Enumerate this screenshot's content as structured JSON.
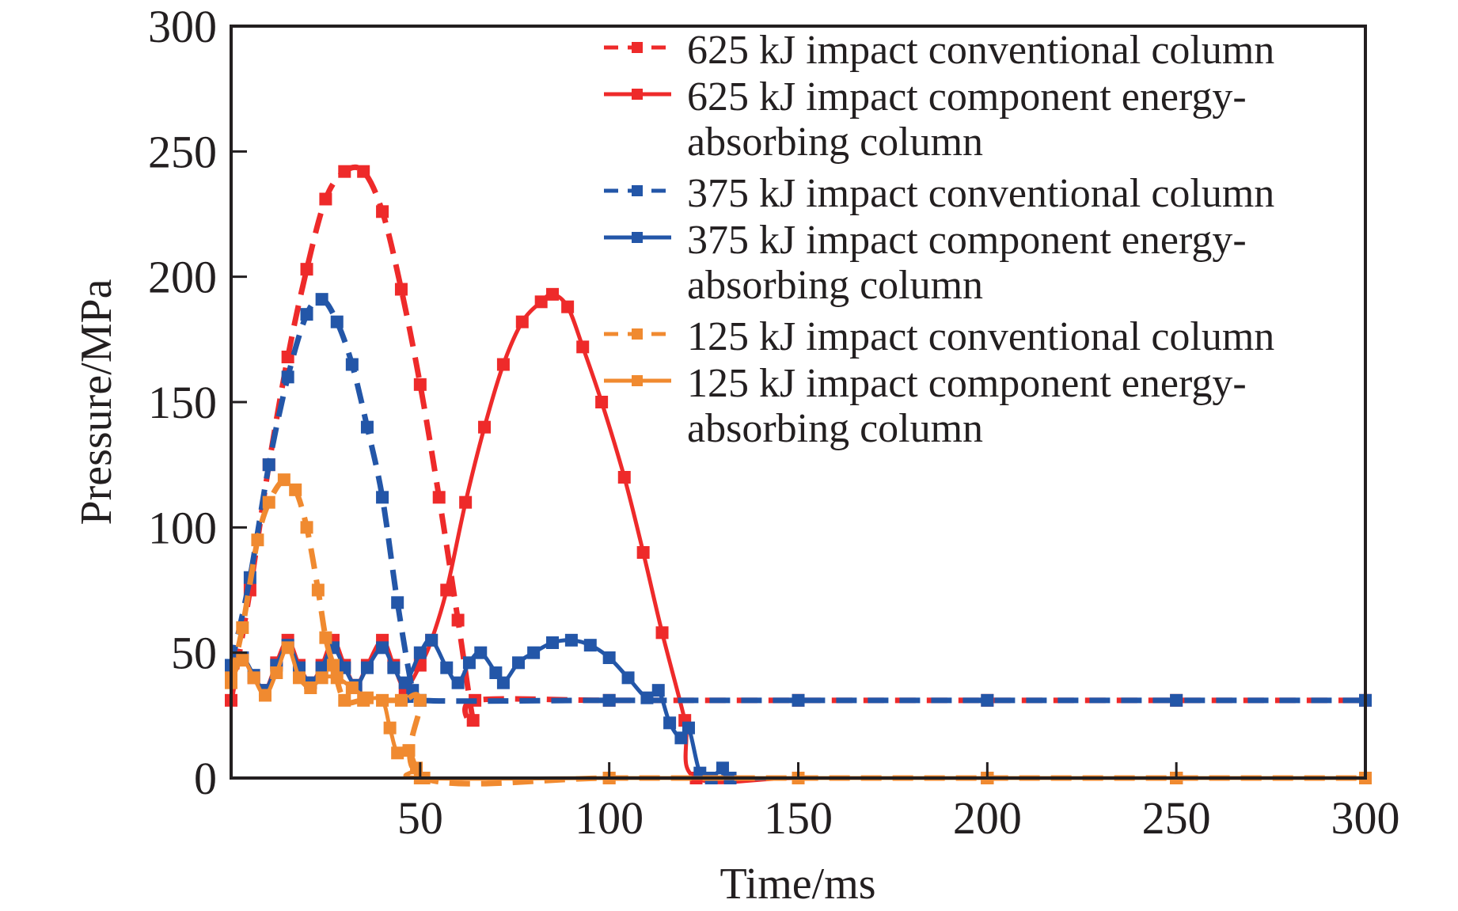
{
  "chart_data": {
    "type": "line",
    "title": "",
    "xlabel": "Time/ms",
    "ylabel": "Pressure/MPa",
    "xlim": [
      0,
      300
    ],
    "ylim": [
      0,
      300
    ],
    "xticks": [
      50,
      100,
      150,
      200,
      250,
      300
    ],
    "yticks": [
      0,
      50,
      100,
      150,
      200,
      250,
      300
    ],
    "grid": false,
    "legend_position": "top-right",
    "series": [
      {
        "name": "625 kJ impact conventional column",
        "legend_lines": [
          "625 kJ impact conventional column"
        ],
        "color": "#ee2a2a",
        "style": "dashed",
        "x": [
          0,
          5,
          10,
          15,
          20,
          25,
          30,
          35,
          40,
          45,
          50,
          55,
          60,
          64,
          64.5,
          100,
          150,
          200,
          250,
          300
        ],
        "y": [
          31,
          75,
          125,
          168,
          203,
          231,
          242,
          242,
          226,
          195,
          157,
          112,
          63,
          23,
          31,
          31,
          31,
          31,
          31,
          31
        ]
      },
      {
        "name": "625 kJ impact component energy-absorbing column",
        "legend_lines": [
          "625 kJ impact component energy-",
          "absorbing column"
        ],
        "color": "#ee2a2a",
        "style": "solid",
        "x": [
          0,
          3,
          6,
          9,
          12,
          15,
          18,
          21,
          24,
          27,
          30,
          33,
          36,
          40,
          43,
          46,
          50,
          53,
          57,
          62,
          67,
          72,
          77,
          82,
          85,
          89,
          93,
          98,
          104,
          109,
          114,
          120,
          123,
          150,
          200,
          250,
          300
        ],
        "y": [
          45,
          48,
          40,
          35,
          46,
          55,
          45,
          38,
          45,
          55,
          45,
          37,
          45,
          55,
          45,
          36,
          45,
          55,
          75,
          110,
          140,
          165,
          182,
          190,
          193,
          188,
          172,
          150,
          120,
          90,
          58,
          23,
          0,
          0,
          0,
          0,
          0
        ]
      },
      {
        "name": "375 kJ impact conventional column",
        "legend_lines": [
          "375 kJ impact conventional column"
        ],
        "color": "#2356a8",
        "style": "dashed",
        "x": [
          0,
          5,
          10,
          15,
          20,
          24,
          28,
          32,
          36,
          40,
          44,
          48,
          50,
          100,
          150,
          200,
          250,
          300
        ],
        "y": [
          45,
          80,
          125,
          160,
          185,
          191,
          182,
          165,
          140,
          112,
          70,
          35,
          31,
          31,
          31,
          31,
          31,
          31
        ]
      },
      {
        "name": "375 kJ impact component energy-absorbing column",
        "legend_lines": [
          "375 kJ impact component energy-",
          "absorbing column"
        ],
        "color": "#2356a8",
        "style": "solid",
        "x": [
          0,
          3,
          6,
          9,
          12,
          15,
          18,
          21,
          24,
          27,
          30,
          33,
          36,
          40,
          43,
          46,
          50,
          53,
          57,
          60,
          63,
          66,
          70,
          72,
          76,
          80,
          85,
          90,
          95,
          100,
          105,
          110,
          113,
          116,
          119,
          121,
          124,
          127,
          130,
          132,
          150,
          200,
          250,
          300
        ],
        "y": [
          44,
          48,
          41,
          35,
          45,
          53,
          44,
          38,
          44,
          52,
          44,
          37,
          44,
          52,
          44,
          38,
          50,
          55,
          44,
          38,
          46,
          50,
          42,
          38,
          46,
          50,
          54,
          55,
          53,
          48,
          40,
          32,
          35,
          22,
          16,
          20,
          2,
          0,
          4,
          0,
          0,
          0,
          0,
          0
        ]
      },
      {
        "name": "125 kJ impact conventional column",
        "legend_lines": [
          "125 kJ impact conventional column"
        ],
        "color": "#f08a30",
        "style": "dashed",
        "x": [
          0,
          3,
          7,
          10,
          14,
          17,
          20,
          23,
          25,
          27,
          30,
          35,
          45,
          50,
          51,
          100,
          150,
          200,
          250,
          300
        ],
        "y": [
          40,
          60,
          95,
          110,
          119,
          115,
          100,
          75,
          56,
          45,
          31,
          31,
          31,
          31,
          0,
          0,
          0,
          0,
          0,
          0
        ]
      },
      {
        "name": "125 kJ impact component energy-absorbing column",
        "legend_lines": [
          "125 kJ impact component energy-",
          "absorbing column"
        ],
        "color": "#f08a30",
        "style": "solid",
        "x": [
          0,
          3,
          6,
          9,
          12,
          15,
          18,
          21,
          24,
          28,
          32,
          36,
          40,
          42,
          44,
          47,
          49,
          50,
          100,
          150,
          200,
          250,
          300
        ],
        "y": [
          38,
          47,
          40,
          33,
          42,
          52,
          40,
          36,
          40,
          40,
          36,
          32,
          31,
          20,
          10,
          11,
          4,
          0,
          0,
          0,
          0,
          0,
          0
        ]
      }
    ]
  }
}
